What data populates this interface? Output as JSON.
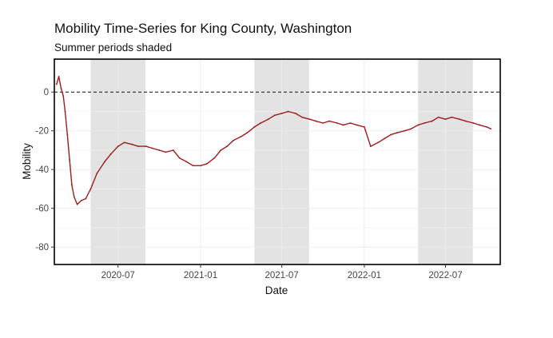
{
  "chart_data": {
    "type": "line",
    "title": "Mobility Time-Series for King County, Washington",
    "subtitle": "Summer periods shaded",
    "xlabel": "Date",
    "ylabel": "Mobility",
    "xlim": [
      "2020-02-10",
      "2022-10-31"
    ],
    "ylim": [
      -89,
      17
    ],
    "x_ticks": [
      "2020-07-01",
      "2021-01-01",
      "2021-07-01",
      "2022-01-01",
      "2022-07-01"
    ],
    "x_tick_labels": [
      "2020-07",
      "2021-01",
      "2021-07",
      "2022-01",
      "2022-07"
    ],
    "y_ticks": [
      0,
      -20,
      -40,
      -60,
      -80
    ],
    "y_tick_labels": [
      "0",
      "-20",
      "-40",
      "-60",
      "-80"
    ],
    "reference_line": {
      "y": 0,
      "style": "dashed"
    },
    "shaded_periods": [
      {
        "start": "2020-05-01",
        "end": "2020-08-31"
      },
      {
        "start": "2021-05-01",
        "end": "2021-08-31"
      },
      {
        "start": "2022-05-01",
        "end": "2022-08-31"
      }
    ],
    "grid": true,
    "legend": "none",
    "series": [
      {
        "x": [
          "2020-02-15",
          "2020-02-20",
          "2020-02-25",
          "2020-03-01",
          "2020-03-05",
          "2020-03-10",
          "2020-03-15",
          "2020-03-20",
          "2020-03-25",
          "2020-04-01",
          "2020-04-10",
          "2020-04-20",
          "2020-05-01",
          "2020-05-15",
          "2020-06-01",
          "2020-06-15",
          "2020-07-01",
          "2020-07-15",
          "2020-08-01",
          "2020-08-15",
          "2020-09-01",
          "2020-09-15",
          "2020-10-01",
          "2020-10-15",
          "2020-11-01",
          "2020-11-15",
          "2020-12-01",
          "2020-12-15",
          "2021-01-01",
          "2021-01-15",
          "2021-02-01",
          "2021-02-15",
          "2021-03-01",
          "2021-03-15",
          "2021-04-01",
          "2021-04-15",
          "2021-05-01",
          "2021-05-15",
          "2021-06-01",
          "2021-06-15",
          "2021-07-01",
          "2021-07-15",
          "2021-08-01",
          "2021-08-15",
          "2021-09-01",
          "2021-09-15",
          "2021-10-01",
          "2021-10-15",
          "2021-11-01",
          "2021-11-15",
          "2021-12-01",
          "2021-12-15",
          "2022-01-01",
          "2022-01-15",
          "2022-02-01",
          "2022-02-15",
          "2022-03-01",
          "2022-03-15",
          "2022-04-01",
          "2022-04-15",
          "2022-05-01",
          "2022-05-15",
          "2022-06-01",
          "2022-06-15",
          "2022-07-01",
          "2022-07-15",
          "2022-08-01",
          "2022-08-15",
          "2022-09-01",
          "2022-09-15",
          "2022-10-01",
          "2022-10-10"
        ],
        "values": [
          4,
          8,
          2,
          -2,
          -10,
          -22,
          -35,
          -48,
          -54,
          -58,
          -56,
          -55,
          -50,
          -42,
          -36,
          -32,
          -28,
          -26,
          -27,
          -28,
          -28,
          -29,
          -30,
          -31,
          -30,
          -34,
          -36,
          -38,
          -38,
          -37,
          -34,
          -30,
          -28,
          -25,
          -23,
          -21,
          -18,
          -16,
          -14,
          -12,
          -11,
          -10,
          -11,
          -13,
          -14,
          -15,
          -16,
          -15,
          -16,
          -17,
          -16,
          -17,
          -18,
          -28,
          -26,
          -24,
          -22,
          -21,
          -20,
          -19,
          -17,
          -16,
          -15,
          -13,
          -14,
          -13,
          -14,
          -15,
          -16,
          -17,
          -18,
          -19
        ]
      }
    ]
  }
}
